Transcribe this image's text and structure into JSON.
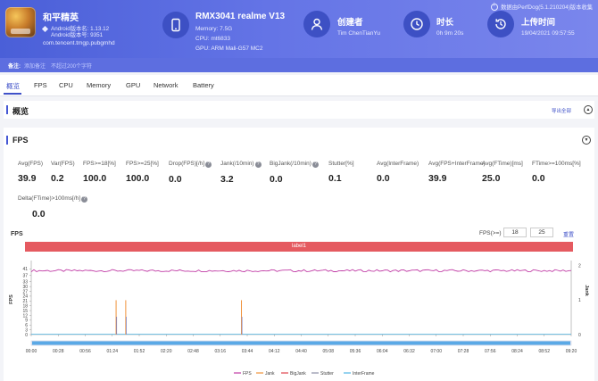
{
  "header": {
    "app_name": "和平精英",
    "android_version": "Android版本名: 1.13.12",
    "android_code": "Android版本号: 9351",
    "package": "com.tencent.tmgp.pubgmhd",
    "device_name": "RMX3041 realme V13",
    "memory": "Memory: 7.5G",
    "cpu": "CPU: mt6833",
    "gpu": "GPU: ARM Mali-G57 MC2",
    "creator_label": "创建者",
    "creator_value": "Tim ChenTianYu",
    "duration_label": "时长",
    "duration_value": "0h 9m 20s",
    "upload_label": "上传时间",
    "upload_value": "19/04/2021 09:57:55",
    "version_note": "数据由PerfDog(5.1.210204)版本收集"
  },
  "notebar": {
    "label": "备注:",
    "add": "添加备注",
    "hint": "不超过200个字符"
  },
  "tabs": [
    "概览",
    "FPS",
    "CPU",
    "Memory",
    "GPU",
    "Network",
    "Battery"
  ],
  "overview": {
    "title": "概览",
    "export": "导出全部"
  },
  "fps_section": {
    "title": "FPS",
    "stats": [
      {
        "label": "Avg(FPS)",
        "value": "39.9",
        "help": false
      },
      {
        "label": "Var(FPS)",
        "value": "0.2",
        "help": false
      },
      {
        "label": "FPS>=18[%]",
        "value": "100.0",
        "help": false
      },
      {
        "label": "FPS>=25[%]",
        "value": "100.0",
        "help": false
      },
      {
        "label": "Drop(FPS)[/h]",
        "value": "0.0",
        "help": true
      },
      {
        "label": "Jank(/10min)",
        "value": "3.2",
        "help": true
      },
      {
        "label": "BigJank(/10min)",
        "value": "0.0",
        "help": true
      },
      {
        "label": "Stutter[%]",
        "value": "0.1",
        "help": false
      },
      {
        "label": "Avg(InterFrame)",
        "value": "0.0",
        "help": false
      },
      {
        "label": "Avg(FPS+InterFrame)",
        "value": "39.9",
        "help": false
      },
      {
        "label": "Avg(FTime)[ms]",
        "value": "25.0",
        "help": false
      },
      {
        "label": "FTime>=100ms[%]",
        "value": "0.0",
        "help": false
      },
      {
        "label": "Delta(FTime)>100ms[/h]",
        "value": "0.0",
        "help": true
      }
    ],
    "chart_title": "FPS",
    "filter_label": "FPS(>=)",
    "filter_values": [
      "18",
      "25"
    ],
    "reset": "重置",
    "label_band": "label1"
  },
  "chart_data": {
    "type": "line",
    "ylabel": "FPS",
    "y2label": "Jank",
    "y_ticks": [
      0,
      3,
      6,
      9,
      12,
      15,
      18,
      21,
      24,
      27,
      30,
      33,
      37,
      41
    ],
    "y2_ticks": [
      0,
      1,
      2
    ],
    "x_ticks": [
      "00:00",
      "00:28",
      "00:56",
      "01:24",
      "01:52",
      "02:20",
      "02:48",
      "03:16",
      "03:44",
      "04:12",
      "04:40",
      "05:08",
      "05:36",
      "06:04",
      "06:32",
      "07:00",
      "07:28",
      "07:56",
      "08:24",
      "08:52",
      "09:20"
    ],
    "duration_s": 560,
    "fps_mean": 39.9,
    "series": [
      {
        "name": "FPS",
        "color": "#c03ba5"
      },
      {
        "name": "Jank",
        "color": "#f0923a"
      },
      {
        "name": "BigJank",
        "color": "#e0444d"
      },
      {
        "name": "Stutter",
        "color": "#8c8fa6"
      },
      {
        "name": "InterFrame",
        "color": "#51b6e4"
      }
    ],
    "jank_events_s": [
      88,
      98,
      218
    ],
    "jank_value": 1
  }
}
